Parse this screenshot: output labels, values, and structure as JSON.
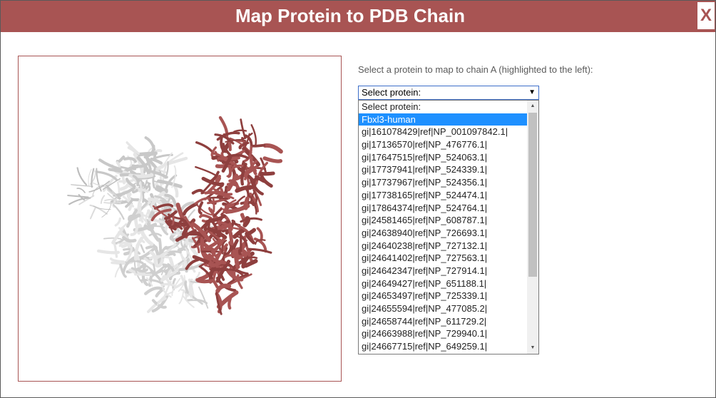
{
  "dialog": {
    "title": "Map Protein to PDB Chain",
    "close_label": "X"
  },
  "viewer": {
    "highlight_color": "#a85453",
    "other_chain_color": "#e6e6e6"
  },
  "mapping": {
    "prompt": "Select a protein to map to chain A (highlighted to the left):",
    "select_value": "Select protein:",
    "arrow": "▼",
    "options": [
      "Select protein:",
      "Fbxl3-human",
      "gi|161078429|ref|NP_001097842.1|",
      "gi|17136570|ref|NP_476776.1|",
      "gi|17647515|ref|NP_524063.1|",
      "gi|17737941|ref|NP_524339.1|",
      "gi|17737967|ref|NP_524356.1|",
      "gi|17738165|ref|NP_524474.1|",
      "gi|17864374|ref|NP_524764.1|",
      "gi|24581465|ref|NP_608787.1|",
      "gi|24638940|ref|NP_726693.1|",
      "gi|24640238|ref|NP_727132.1|",
      "gi|24641402|ref|NP_727563.1|",
      "gi|24642347|ref|NP_727914.1|",
      "gi|24649427|ref|NP_651188.1|",
      "gi|24653497|ref|NP_725339.1|",
      "gi|24655594|ref|NP_477085.2|",
      "gi|24658744|ref|NP_611729.2|",
      "gi|24663988|ref|NP_729940.1|",
      "gi|24667715|ref|NP_649259.1|"
    ],
    "selected_index": 1,
    "scroll_up": "▲",
    "scroll_down": "▼"
  }
}
